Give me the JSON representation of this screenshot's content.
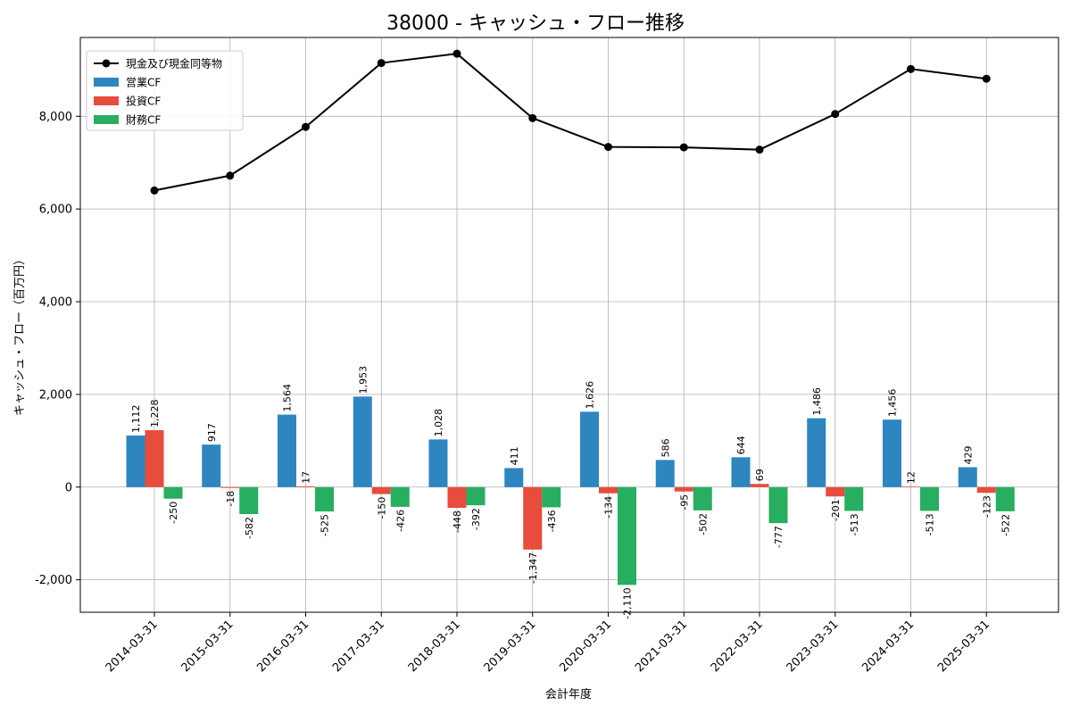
{
  "chart_data": {
    "type": "bar+line",
    "title": "38000 - キャッシュ・フロー推移",
    "xlabel": "会計年度",
    "ylabel": "キャッシュ・フロー（百万円）",
    "ylim": [
      -2700,
      9700
    ],
    "yticks": [
      -2000,
      0,
      2000,
      4000,
      6000,
      8000
    ],
    "ytick_labels": [
      "-2,000",
      "0",
      "2,000",
      "4,000",
      "6,000",
      "8,000"
    ],
    "categories": [
      "2014-03-31",
      "2015-03-31",
      "2016-03-31",
      "2017-03-31",
      "2018-03-31",
      "2019-03-31",
      "2020-03-31",
      "2021-03-31",
      "2022-03-31",
      "2023-03-31",
      "2024-03-31",
      "2025-03-31"
    ],
    "series": [
      {
        "name": "営業CF",
        "kind": "bar",
        "color": "#2e86c1",
        "values": [
          1112,
          917,
          1564,
          1953,
          1028,
          411,
          1626,
          586,
          644,
          1486,
          1456,
          429
        ],
        "labels": [
          "1,112",
          "917",
          "1,564",
          "1,953",
          "1,028",
          "411",
          "1,626",
          "586",
          "644",
          "1,486",
          "1,456",
          "429"
        ]
      },
      {
        "name": "投資CF",
        "kind": "bar",
        "color": "#e74c3c",
        "values": [
          1228,
          -18,
          17,
          -150,
          -448,
          -1347,
          -134,
          -95,
          69,
          -201,
          12,
          -123
        ],
        "labels": [
          "1,228",
          "-18",
          "17",
          "-150",
          "-448",
          "-1,347",
          "-134",
          "-95",
          "69",
          "-201",
          "12",
          "-123"
        ]
      },
      {
        "name": "財務CF",
        "kind": "bar",
        "color": "#27ae60",
        "values": [
          -250,
          -582,
          -525,
          -426,
          -392,
          -436,
          -2110,
          -502,
          -777,
          -513,
          -513,
          -522
        ],
        "labels": [
          "-250",
          "-582",
          "-525",
          "-426",
          "-392",
          "-436",
          "-2,110",
          "-502",
          "-777",
          "-513",
          "-513",
          "-522"
        ]
      },
      {
        "name": "現金及び現金同等物",
        "kind": "line",
        "color": "#000000",
        "values": [
          6400,
          6720,
          7770,
          9150,
          9350,
          7960,
          7340,
          7330,
          7280,
          8050,
          9020,
          8810
        ]
      }
    ],
    "legend_position": "top-left",
    "grid": true
  }
}
